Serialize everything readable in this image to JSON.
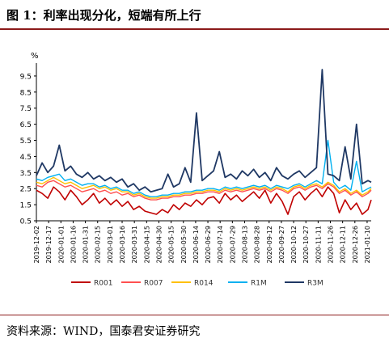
{
  "figure": {
    "title": "图 1：利率出现分化，短端有所上行",
    "source": "资料来源：WIND，国泰君安证券研究"
  },
  "chart_data": {
    "type": "line",
    "ylabel": "%",
    "ylim": [
      0.5,
      10.0
    ],
    "yticks": [
      "0.5",
      "1.5",
      "2.5",
      "3.5",
      "4.5",
      "5.5",
      "6.5",
      "7.5",
      "8.5",
      "9.5"
    ],
    "grid": false,
    "legend_position": "bottom",
    "x_start": "2019-12-02",
    "x_end": "2021-01-15",
    "xticks": [
      "2019-12-02",
      "2019-12-17",
      "2020-01-01",
      "2020-01-16",
      "2020-01-31",
      "2020-02-15",
      "2020-03-01",
      "2020-03-16",
      "2020-03-31",
      "2020-04-15",
      "2020-04-30",
      "2020-05-15",
      "2020-05-30",
      "2020-06-14",
      "2020-06-29",
      "2020-07-14",
      "2020-07-29",
      "2020-08-13",
      "2020-08-28",
      "2020-09-12",
      "2020-09-27",
      "2020-10-12",
      "2020-10-27",
      "2020-11-11",
      "2020-11-26",
      "2020-12-11",
      "2020-12-26",
      "2021-01-10"
    ],
    "x": [
      "2019-12-02",
      "2019-12-09",
      "2019-12-16",
      "2019-12-23",
      "2019-12-30",
      "2020-01-06",
      "2020-01-13",
      "2020-01-20",
      "2020-01-27",
      "2020-02-03",
      "2020-02-10",
      "2020-02-17",
      "2020-02-24",
      "2020-03-02",
      "2020-03-09",
      "2020-03-16",
      "2020-03-23",
      "2020-03-30",
      "2020-04-06",
      "2020-04-13",
      "2020-04-20",
      "2020-04-27",
      "2020-05-04",
      "2020-05-11",
      "2020-05-18",
      "2020-05-25",
      "2020-06-01",
      "2020-06-08",
      "2020-06-15",
      "2020-06-22",
      "2020-06-29",
      "2020-07-06",
      "2020-07-13",
      "2020-07-20",
      "2020-07-27",
      "2020-08-03",
      "2020-08-10",
      "2020-08-17",
      "2020-08-24",
      "2020-08-31",
      "2020-09-07",
      "2020-09-14",
      "2020-09-21",
      "2020-09-28",
      "2020-10-05",
      "2020-10-12",
      "2020-10-19",
      "2020-10-26",
      "2020-11-02",
      "2020-11-09",
      "2020-11-16",
      "2020-11-23",
      "2020-11-30",
      "2020-12-07",
      "2020-12-14",
      "2020-12-21",
      "2020-12-28",
      "2021-01-04",
      "2021-01-11",
      "2021-01-15"
    ],
    "series": [
      {
        "name": "R001",
        "color": "#c00000",
        "width": 1.6,
        "values": [
          2.4,
          2.2,
          1.9,
          2.6,
          2.3,
          1.8,
          2.4,
          2.0,
          1.5,
          1.8,
          2.2,
          1.6,
          1.9,
          1.5,
          1.8,
          1.4,
          1.7,
          1.2,
          1.4,
          1.1,
          1.0,
          0.9,
          1.2,
          1.0,
          1.5,
          1.2,
          1.6,
          1.4,
          1.8,
          1.5,
          1.9,
          2.0,
          1.6,
          2.2,
          1.8,
          2.1,
          1.7,
          2.0,
          2.3,
          1.9,
          2.4,
          1.6,
          2.2,
          1.7,
          0.9,
          2.0,
          2.3,
          1.8,
          2.2,
          2.5,
          2.0,
          2.6,
          2.2,
          1.0,
          1.8,
          1.2,
          1.6,
          0.9,
          1.2,
          1.8
        ]
      },
      {
        "name": "R007",
        "color": "#ff5050",
        "width": 1.4,
        "values": [
          2.7,
          2.6,
          2.9,
          3.0,
          2.8,
          2.6,
          2.7,
          2.5,
          2.3,
          2.4,
          2.5,
          2.3,
          2.4,
          2.2,
          2.3,
          2.1,
          2.2,
          2.0,
          2.1,
          1.9,
          1.8,
          1.8,
          1.9,
          1.9,
          2.0,
          2.0,
          2.1,
          2.1,
          2.2,
          2.2,
          2.3,
          2.3,
          2.2,
          2.4,
          2.3,
          2.4,
          2.3,
          2.4,
          2.5,
          2.4,
          2.5,
          2.3,
          2.5,
          2.4,
          2.2,
          2.5,
          2.6,
          2.4,
          2.6,
          2.7,
          2.5,
          2.8,
          2.6,
          2.2,
          2.4,
          2.1,
          2.3,
          2.0,
          2.2,
          2.4
        ]
      },
      {
        "name": "R014",
        "color": "#ffc000",
        "width": 1.4,
        "values": [
          2.9,
          2.8,
          3.0,
          3.2,
          3.0,
          2.8,
          2.9,
          2.7,
          2.5,
          2.6,
          2.7,
          2.5,
          2.6,
          2.4,
          2.5,
          2.3,
          2.3,
          2.1,
          2.2,
          2.0,
          1.9,
          1.9,
          2.0,
          2.0,
          2.1,
          2.1,
          2.2,
          2.2,
          2.3,
          2.3,
          2.4,
          2.4,
          2.3,
          2.5,
          2.4,
          2.5,
          2.4,
          2.5,
          2.6,
          2.5,
          2.6,
          2.4,
          2.6,
          2.5,
          2.3,
          2.6,
          2.7,
          2.5,
          2.7,
          2.8,
          2.6,
          2.9,
          2.7,
          2.3,
          2.5,
          2.2,
          2.4,
          2.1,
          2.3,
          2.5
        ]
      },
      {
        "name": "R1M",
        "color": "#00b0f0",
        "width": 1.4,
        "values": [
          3.1,
          3.0,
          3.2,
          3.3,
          3.4,
          3.0,
          3.1,
          2.9,
          2.7,
          2.8,
          2.8,
          2.6,
          2.7,
          2.5,
          2.6,
          2.4,
          2.4,
          2.2,
          2.3,
          2.1,
          2.0,
          2.0,
          2.1,
          2.1,
          2.2,
          2.2,
          2.3,
          2.3,
          2.4,
          2.4,
          2.5,
          2.5,
          2.4,
          2.6,
          2.5,
          2.6,
          2.5,
          2.6,
          2.7,
          2.6,
          2.7,
          2.5,
          2.7,
          2.6,
          2.5,
          2.7,
          2.8,
          2.6,
          2.8,
          3.0,
          2.8,
          5.5,
          2.9,
          2.5,
          2.7,
          2.4,
          4.2,
          2.3,
          2.5,
          2.6
        ]
      },
      {
        "name": "R3M",
        "color": "#1f3864",
        "width": 1.8,
        "values": [
          3.3,
          4.1,
          3.5,
          3.9,
          5.2,
          3.6,
          3.9,
          3.4,
          3.2,
          3.5,
          3.1,
          3.3,
          3.0,
          3.2,
          2.9,
          3.1,
          2.6,
          2.8,
          2.4,
          2.6,
          2.3,
          2.4,
          2.5,
          3.4,
          2.6,
          2.8,
          3.8,
          2.9,
          7.2,
          3.0,
          3.3,
          3.6,
          4.8,
          3.2,
          3.4,
          3.1,
          3.6,
          3.3,
          3.7,
          3.2,
          3.5,
          3.0,
          3.8,
          3.3,
          3.1,
          3.4,
          3.6,
          3.2,
          3.5,
          3.8,
          9.9,
          3.4,
          3.3,
          3.0,
          5.1,
          3.1,
          6.5,
          2.8,
          3.0,
          2.9
        ]
      }
    ]
  }
}
